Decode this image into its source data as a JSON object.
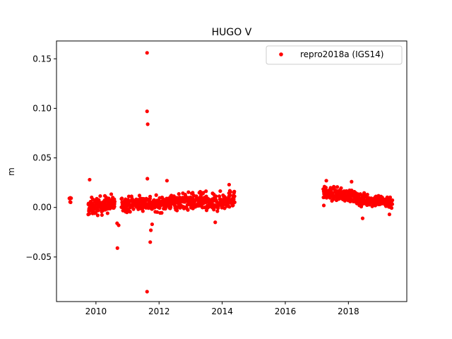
{
  "chart_data": {
    "type": "scatter",
    "title": "HUGO V",
    "xlabel": "",
    "ylabel": "m",
    "xlim": [
      2008.75,
      2019.85
    ],
    "ylim": [
      -0.095,
      0.168
    ],
    "x_ticks": [
      2010,
      2012,
      2014,
      2016,
      2018
    ],
    "x_tick_labels": [
      "2010",
      "2012",
      "2014",
      "2016",
      "2018"
    ],
    "y_ticks": [
      -0.05,
      0.0,
      0.05,
      0.1,
      0.15
    ],
    "y_tick_labels": [
      "−0.05",
      "0.00",
      "0.05",
      "0.10",
      "0.15"
    ],
    "grid": false,
    "legend_position": "top-right",
    "series": [
      {
        "name": "repro2018a (IGS14)",
        "color": "#ff0000",
        "marker": "circle",
        "segments": [
          {
            "x_start": 2009.15,
            "x_end": 2009.22,
            "center": 0.006,
            "trend": 0.0,
            "spread": 0.005,
            "count": 6
          },
          {
            "x_start": 2009.75,
            "x_end": 2010.6,
            "center": 0.002,
            "trend": 0.004,
            "spread": 0.007,
            "count": 130
          },
          {
            "x_start": 2010.8,
            "x_end": 2011.75,
            "center": 0.004,
            "trend": 0.002,
            "spread": 0.006,
            "count": 130
          },
          {
            "x_start": 2011.75,
            "x_end": 2012.5,
            "center": 0.004,
            "trend": 0.004,
            "spread": 0.006,
            "count": 110
          },
          {
            "x_start": 2012.5,
            "x_end": 2013.5,
            "center": 0.006,
            "trend": 0.0,
            "spread": 0.007,
            "count": 140
          },
          {
            "x_start": 2013.5,
            "x_end": 2014.4,
            "center": 0.006,
            "trend": 0.008,
            "spread": 0.007,
            "count": 130
          },
          {
            "x_start": 2017.2,
            "x_end": 2018.2,
            "center": 0.013,
            "trend": -0.003,
            "spread": 0.005,
            "count": 150
          },
          {
            "x_start": 2018.2,
            "x_end": 2019.4,
            "center": 0.007,
            "trend": -0.003,
            "spread": 0.005,
            "count": 170
          }
        ],
        "points": [
          {
            "x": 2011.62,
            "y": 0.156
          },
          {
            "x": 2011.62,
            "y": 0.097
          },
          {
            "x": 2011.64,
            "y": 0.084
          },
          {
            "x": 2011.62,
            "y": -0.085
          },
          {
            "x": 2010.68,
            "y": -0.041
          },
          {
            "x": 2011.72,
            "y": -0.035
          },
          {
            "x": 2009.8,
            "y": 0.028
          },
          {
            "x": 2011.63,
            "y": 0.029
          },
          {
            "x": 2011.74,
            "y": -0.023
          },
          {
            "x": 2011.78,
            "y": -0.017
          },
          {
            "x": 2010.67,
            "y": -0.016
          },
          {
            "x": 2010.72,
            "y": -0.018
          },
          {
            "x": 2012.25,
            "y": 0.027
          },
          {
            "x": 2013.78,
            "y": -0.015
          },
          {
            "x": 2018.45,
            "y": -0.011
          },
          {
            "x": 2017.3,
            "y": 0.027
          },
          {
            "x": 2018.1,
            "y": 0.026
          },
          {
            "x": 2014.22,
            "y": 0.023
          },
          {
            "x": 2017.22,
            "y": 0.002
          },
          {
            "x": 2019.3,
            "y": -0.007
          }
        ]
      }
    ]
  }
}
